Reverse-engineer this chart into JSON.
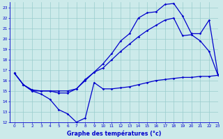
{
  "xlabel": "Graphe des températures (°c)",
  "xlim": [
    -0.5,
    23
  ],
  "ylim": [
    12,
    23.5
  ],
  "yticks": [
    12,
    13,
    14,
    15,
    16,
    17,
    18,
    19,
    20,
    21,
    22,
    23
  ],
  "xticks": [
    0,
    1,
    2,
    3,
    4,
    5,
    6,
    7,
    8,
    9,
    10,
    11,
    12,
    13,
    14,
    15,
    16,
    17,
    18,
    19,
    20,
    21,
    22,
    23
  ],
  "bg_color": "#cceaea",
  "line_color": "#0000cc",
  "grid_color": "#99cccc",
  "y_min": [
    16.7,
    15.6,
    15.0,
    14.7,
    14.2,
    13.2,
    12.8,
    12.0,
    12.4,
    15.8,
    15.2,
    15.2,
    15.3,
    15.4,
    15.6,
    15.8,
    16.0,
    16.1,
    16.2,
    16.3,
    16.3,
    16.4,
    16.4,
    16.5
  ],
  "y_mid": [
    16.7,
    15.6,
    15.0,
    15.0,
    15.0,
    14.8,
    14.8,
    15.2,
    16.1,
    16.8,
    17.2,
    18.0,
    18.8,
    19.5,
    20.2,
    20.8,
    21.3,
    21.8,
    22.0,
    20.3,
    20.4,
    19.8,
    18.8,
    16.5
  ],
  "y_max": [
    16.7,
    15.6,
    15.1,
    15.0,
    15.0,
    15.0,
    15.0,
    15.2,
    16.0,
    16.8,
    17.6,
    18.6,
    19.8,
    20.5,
    22.0,
    22.5,
    22.6,
    23.3,
    23.4,
    22.2,
    20.5,
    20.5,
    21.8,
    16.6
  ]
}
